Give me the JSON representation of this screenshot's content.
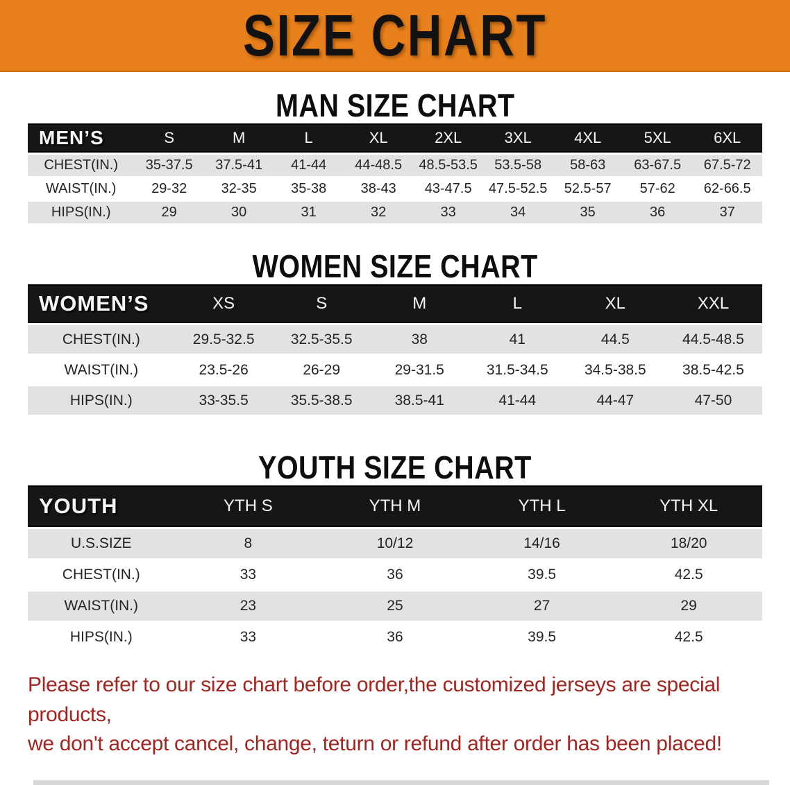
{
  "banner": {
    "title": "SIZE CHART",
    "background_color": "#E8811B",
    "text_color": "#121212"
  },
  "sections": {
    "men": {
      "heading": "MAN SIZE CHART",
      "group_label": "MEN’S",
      "sizes": [
        "S",
        "M",
        "L",
        "XL",
        "2XL",
        "3XL",
        "4XL",
        "5XL",
        "6XL"
      ],
      "rows": [
        {
          "label": "CHEST(IN.)",
          "values": [
            "35-37.5",
            "37.5-41",
            "41-44",
            "44-48.5",
            "48.5-53.5",
            "53.5-58",
            "58-63",
            "63-67.5",
            "67.5-72"
          ]
        },
        {
          "label": "WAIST(IN.)",
          "values": [
            "29-32",
            "32-35",
            "35-38",
            "38-43",
            "43-47.5",
            "47.5-52.5",
            "52.5-57",
            "57-62",
            "62-66.5"
          ]
        },
        {
          "label": "HIPS(IN.)",
          "values": [
            "29",
            "30",
            "31",
            "32",
            "33",
            "34",
            "35",
            "36",
            "37"
          ]
        }
      ]
    },
    "women": {
      "heading": "WOMEN SIZE CHART",
      "group_label": "WOMEN’S",
      "sizes": [
        "XS",
        "S",
        "M",
        "L",
        "XL",
        "XXL"
      ],
      "rows": [
        {
          "label": "CHEST(IN.)",
          "values": [
            "29.5-32.5",
            "32.5-35.5",
            "38",
            "41",
            "44.5",
            "44.5-48.5"
          ]
        },
        {
          "label": "WAIST(IN.)",
          "values": [
            "23.5-26",
            "26-29",
            "29-31.5",
            "31.5-34.5",
            "34.5-38.5",
            "38.5-42.5"
          ]
        },
        {
          "label": "HIPS(IN.)",
          "values": [
            "33-35.5",
            "35.5-38.5",
            "38.5-41",
            "41-44",
            "44-47",
            "47-50"
          ]
        }
      ]
    },
    "youth": {
      "heading": "YOUTH SIZE CHART",
      "group_label": "YOUTH",
      "sizes": [
        "YTH S",
        "YTH M",
        "YTH L",
        "YTH XL"
      ],
      "rows": [
        {
          "label": "U.S.SIZE",
          "values": [
            "8",
            "10/12",
            "14/16",
            "18/20"
          ]
        },
        {
          "label": "CHEST(IN.)",
          "values": [
            "33",
            "36",
            "39.5",
            "42.5"
          ]
        },
        {
          "label": "WAIST(IN.)",
          "values": [
            "23",
            "25",
            "27",
            "29"
          ]
        },
        {
          "label": "HIPS(IN.)",
          "values": [
            "33",
            "36",
            "39.5",
            "42.5"
          ]
        }
      ]
    }
  },
  "disclaimer": {
    "line1": "Please refer to our size chart before order,the customized jerseys are special products,",
    "line2": "we don't accept cancel, change, teturn or refund after order has been placed!",
    "text_color": "#A32520"
  },
  "colors": {
    "header_band": "#161616",
    "row_stripe_gray": "#E2E2E2",
    "row_stripe_white": "#FFFFFF"
  }
}
